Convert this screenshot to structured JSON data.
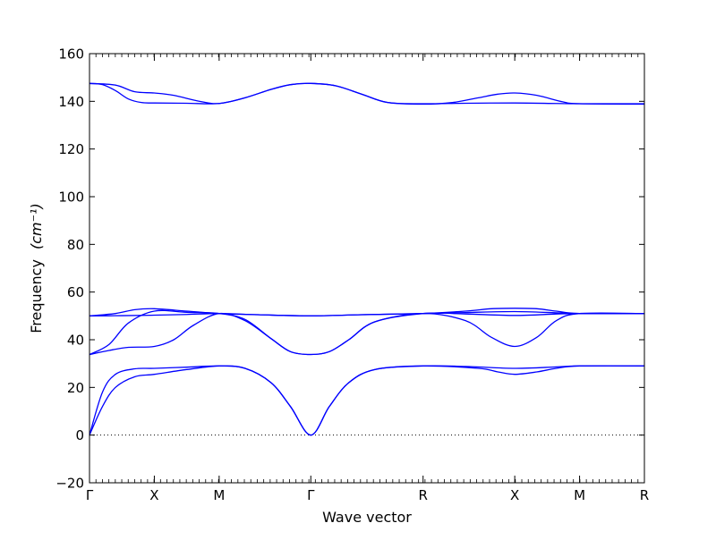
{
  "chart_data": {
    "type": "line",
    "title": "",
    "xlabel": "Wave vector",
    "ylabel": "Frequency",
    "ylabel_unit": "(cm⁻¹)",
    "ylim": [
      -20,
      160
    ],
    "yticks": [
      -20,
      0,
      20,
      40,
      60,
      80,
      100,
      120,
      140,
      160
    ],
    "xticks": [
      {
        "x": 0.0,
        "label": "Γ"
      },
      {
        "x": 0.5,
        "label": "X"
      },
      {
        "x": 1.0,
        "label": "M"
      },
      {
        "x": 1.707,
        "label": "Γ"
      },
      {
        "x": 2.573,
        "label": "R"
      },
      {
        "x": 3.28,
        "label": "X"
      },
      {
        "x": 3.78,
        "label": "M"
      },
      {
        "x": 4.28,
        "label": "R"
      }
    ],
    "xlim": [
      0,
      4.28
    ],
    "zero_line": true,
    "grid": false,
    "line_color": "#0000ff",
    "series": [
      {
        "points": [
          [
            0,
            0
          ],
          [
            0.1,
            12
          ],
          [
            0.2,
            20
          ],
          [
            0.35,
            24.5
          ],
          [
            0.5,
            25.5
          ],
          [
            0.75,
            27.5
          ],
          [
            1.0,
            29
          ],
          [
            1.2,
            28
          ],
          [
            1.4,
            22
          ],
          [
            1.55,
            12
          ],
          [
            1.707,
            0
          ],
          [
            1.85,
            12
          ],
          [
            2.0,
            22
          ],
          [
            2.2,
            27.5
          ],
          [
            2.573,
            29
          ],
          [
            3.0,
            28
          ],
          [
            3.15,
            26.5
          ],
          [
            3.28,
            25.5
          ],
          [
            3.45,
            26.5
          ],
          [
            3.6,
            28
          ],
          [
            3.78,
            29
          ],
          [
            4.28,
            29
          ]
        ]
      },
      {
        "points": [
          [
            0,
            0
          ],
          [
            0.1,
            18
          ],
          [
            0.2,
            25.5
          ],
          [
            0.35,
            27.8
          ],
          [
            0.5,
            28
          ],
          [
            0.75,
            28.5
          ],
          [
            1.0,
            29
          ],
          [
            1.2,
            28
          ],
          [
            1.4,
            22
          ],
          [
            1.55,
            12
          ],
          [
            1.707,
            0
          ],
          [
            1.85,
            12
          ],
          [
            2.0,
            22
          ],
          [
            2.2,
            27.5
          ],
          [
            2.573,
            29
          ],
          [
            2.9,
            28.8
          ],
          [
            3.28,
            28
          ],
          [
            3.6,
            28.6
          ],
          [
            3.78,
            29
          ],
          [
            4.28,
            29
          ]
        ]
      },
      {
        "points": [
          [
            0,
            33.8
          ],
          [
            0.15,
            35.5
          ],
          [
            0.3,
            36.8
          ],
          [
            0.5,
            37.2
          ],
          [
            0.65,
            40
          ],
          [
            0.8,
            46
          ],
          [
            1.0,
            51
          ],
          [
            1.2,
            48
          ],
          [
            1.4,
            40.5
          ],
          [
            1.55,
            35
          ],
          [
            1.707,
            33.8
          ],
          [
            1.85,
            35
          ],
          [
            2.0,
            40
          ],
          [
            2.2,
            47.5
          ],
          [
            2.573,
            51
          ],
          [
            2.9,
            48
          ],
          [
            3.1,
            41
          ],
          [
            3.28,
            37.2
          ],
          [
            3.45,
            41
          ],
          [
            3.6,
            48
          ],
          [
            3.78,
            51
          ],
          [
            4.28,
            51
          ]
        ]
      },
      {
        "points": [
          [
            0,
            33.8
          ],
          [
            0.15,
            38
          ],
          [
            0.3,
            47
          ],
          [
            0.5,
            52
          ],
          [
            0.75,
            51.5
          ],
          [
            1.0,
            51
          ],
          [
            1.2,
            48.5
          ],
          [
            1.4,
            40.5
          ],
          [
            1.55,
            35
          ],
          [
            1.707,
            33.8
          ],
          [
            1.85,
            35
          ],
          [
            2.0,
            40
          ],
          [
            2.2,
            47.5
          ],
          [
            2.573,
            51
          ],
          [
            2.9,
            50.8
          ],
          [
            3.28,
            50.2
          ],
          [
            3.6,
            50.8
          ],
          [
            3.78,
            51
          ],
          [
            4.28,
            51
          ]
        ]
      },
      {
        "points": [
          [
            0,
            50
          ],
          [
            0.25,
            50.1
          ],
          [
            0.5,
            50.3
          ],
          [
            0.75,
            50.6
          ],
          [
            1.0,
            51
          ],
          [
            1.3,
            50.5
          ],
          [
            1.707,
            50
          ],
          [
            2.1,
            50.5
          ],
          [
            2.573,
            51
          ],
          [
            2.9,
            52
          ],
          [
            3.1,
            53
          ],
          [
            3.28,
            53.2
          ],
          [
            3.45,
            53
          ],
          [
            3.6,
            52
          ],
          [
            3.78,
            51
          ],
          [
            4.28,
            51
          ]
        ]
      },
      {
        "points": [
          [
            0,
            50
          ],
          [
            0.2,
            51
          ],
          [
            0.35,
            52.6
          ],
          [
            0.5,
            53
          ],
          [
            0.75,
            52
          ],
          [
            1.0,
            51
          ],
          [
            1.3,
            50.5
          ],
          [
            1.707,
            50
          ],
          [
            2.1,
            50.5
          ],
          [
            2.573,
            51
          ],
          [
            2.9,
            51.4
          ],
          [
            3.28,
            51.8
          ],
          [
            3.6,
            51.3
          ],
          [
            3.78,
            51
          ],
          [
            4.28,
            51
          ]
        ]
      },
      {
        "points": [
          [
            0,
            147.5
          ],
          [
            0.1,
            147
          ],
          [
            0.2,
            144.5
          ],
          [
            0.3,
            141
          ],
          [
            0.4,
            139.5
          ],
          [
            0.5,
            139.3
          ],
          [
            0.75,
            139.2
          ],
          [
            1.0,
            139.1
          ],
          [
            1.2,
            141.5
          ],
          [
            1.4,
            145
          ],
          [
            1.55,
            147
          ],
          [
            1.707,
            147.5
          ],
          [
            1.9,
            146.5
          ],
          [
            2.1,
            143
          ],
          [
            2.3,
            139.5
          ],
          [
            2.573,
            139
          ],
          [
            2.9,
            139.2
          ],
          [
            3.28,
            139.3
          ],
          [
            3.6,
            139.1
          ],
          [
            3.78,
            139
          ],
          [
            4.28,
            139
          ]
        ]
      },
      {
        "points": [
          [
            0,
            147.5
          ],
          [
            0.2,
            146.8
          ],
          [
            0.35,
            144
          ],
          [
            0.5,
            143.5
          ],
          [
            0.65,
            142.5
          ],
          [
            0.85,
            140
          ],
          [
            1.0,
            139.1
          ],
          [
            1.2,
            141.5
          ],
          [
            1.4,
            145
          ],
          [
            1.55,
            147
          ],
          [
            1.707,
            147.5
          ],
          [
            1.9,
            146.5
          ],
          [
            2.1,
            143
          ],
          [
            2.3,
            139.5
          ],
          [
            2.573,
            138.8
          ],
          [
            2.8,
            139.5
          ],
          [
            3.0,
            141.5
          ],
          [
            3.15,
            143
          ],
          [
            3.28,
            143.5
          ],
          [
            3.45,
            142.5
          ],
          [
            3.65,
            139.8
          ],
          [
            3.78,
            139
          ],
          [
            4.28,
            138.8
          ]
        ]
      }
    ]
  }
}
